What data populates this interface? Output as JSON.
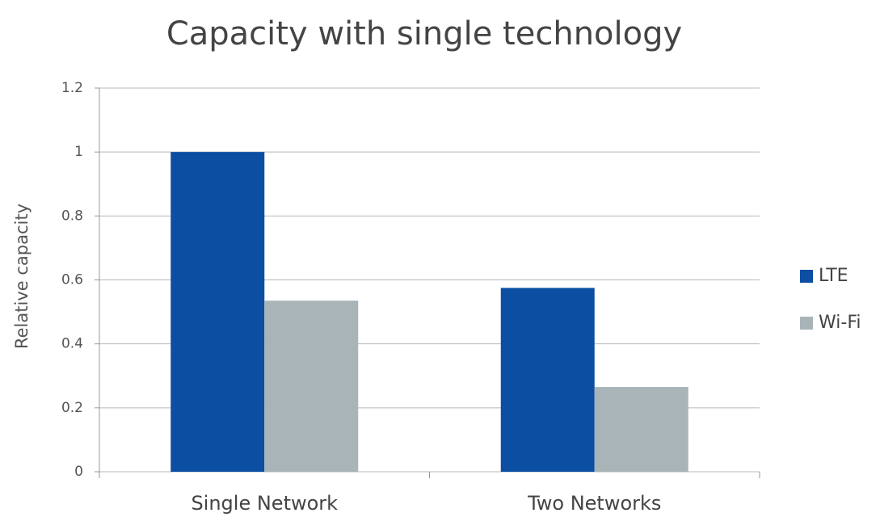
{
  "chart_data": {
    "type": "bar",
    "title": "Capacity with single technology",
    "y_label": "Relative capacity",
    "categories": [
      "Single Network",
      "Two Networks"
    ],
    "series": [
      {
        "name": "LTE",
        "color": "#0b4ea2",
        "values": [
          1,
          0.575
        ]
      },
      {
        "name": "Wi-Fi",
        "color": "#a8b4b8",
        "values": [
          0.535,
          0.265
        ]
      }
    ],
    "ylim": [
      0,
      1.2
    ],
    "yticks": [
      0,
      0.2,
      0.4,
      0.6,
      0.8,
      1,
      1.2
    ],
    "grid": true,
    "legend": "right"
  }
}
